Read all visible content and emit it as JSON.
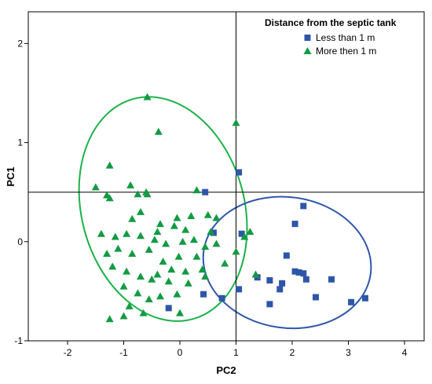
{
  "chart_data": {
    "type": "scatter",
    "xlabel": "PC2",
    "ylabel": "PC1",
    "xlim": [
      -2.7,
      4.35
    ],
    "ylim": [
      -1.0,
      2.32
    ],
    "xticks": [
      -2,
      -1,
      0,
      1,
      2,
      3,
      4
    ],
    "yticks": [
      -1,
      0,
      1,
      2
    ],
    "reference_lines": {
      "x": 1,
      "y": 0.5
    },
    "grid": false,
    "legend": {
      "title": "Distance from the septic tank",
      "placement": "top-right"
    },
    "series": [
      {
        "name": "Less than 1 m",
        "marker": "square",
        "color": "#2e56a8",
        "points": [
          [
            1.05,
            0.7
          ],
          [
            0.45,
            0.5
          ],
          [
            0.6,
            0.09
          ],
          [
            1.1,
            0.08
          ],
          [
            0.42,
            -0.53
          ],
          [
            1.05,
            -0.48
          ],
          [
            0.75,
            -0.57
          ],
          [
            -0.2,
            -0.67
          ],
          [
            2.2,
            0.36
          ],
          [
            2.05,
            0.18
          ],
          [
            1.9,
            -0.14
          ],
          [
            1.38,
            -0.36
          ],
          [
            1.6,
            -0.39
          ],
          [
            1.82,
            -0.42
          ],
          [
            2.05,
            -0.3
          ],
          [
            2.12,
            -0.31
          ],
          [
            2.2,
            -0.32
          ],
          [
            2.25,
            -0.38
          ],
          [
            2.7,
            -0.38
          ],
          [
            1.78,
            -0.48
          ],
          [
            1.6,
            -0.63
          ],
          [
            2.42,
            -0.56
          ],
          [
            3.05,
            -0.61
          ],
          [
            3.3,
            -0.57
          ]
        ]
      },
      {
        "name": "More then 1 m",
        "marker": "triangle",
        "color": "#139a43",
        "ellipse_color": "#1bb24a",
        "points": [
          [
            -0.58,
            1.46
          ],
          [
            -0.38,
            1.11
          ],
          [
            1.0,
            1.2
          ],
          [
            -1.25,
            0.77
          ],
          [
            -1.5,
            0.55
          ],
          [
            -1.3,
            0.47
          ],
          [
            -1.25,
            0.44
          ],
          [
            -0.88,
            0.57
          ],
          [
            -0.6,
            0.5
          ],
          [
            -0.75,
            0.48
          ],
          [
            -0.58,
            0.48
          ],
          [
            0.3,
            0.52
          ],
          [
            0.5,
            0.27
          ],
          [
            0.65,
            0.24
          ],
          [
            0.2,
            0.26
          ],
          [
            -0.05,
            0.24
          ],
          [
            -0.85,
            0.23
          ],
          [
            -0.1,
            0.16
          ],
          [
            -0.35,
            0.18
          ],
          [
            -0.7,
            0.06
          ],
          [
            -0.95,
            0.08
          ],
          [
            -1.15,
            0.05
          ],
          [
            -1.1,
            -0.07
          ],
          [
            -0.85,
            -0.12
          ],
          [
            -0.55,
            -0.08
          ],
          [
            -0.45,
            0.02
          ],
          [
            -0.25,
            -0.02
          ],
          [
            0.05,
            0.0
          ],
          [
            0.25,
            0.02
          ],
          [
            0.45,
            -0.05
          ],
          [
            0.65,
            -0.02
          ],
          [
            0.3,
            -0.15
          ],
          [
            -0.02,
            -0.15
          ],
          [
            -0.3,
            -0.2
          ],
          [
            -0.15,
            -0.28
          ],
          [
            0.1,
            -0.3
          ],
          [
            0.4,
            -0.28
          ],
          [
            0.8,
            -0.22
          ],
          [
            1.0,
            -0.1
          ],
          [
            1.15,
            0.05
          ],
          [
            1.25,
            0.1
          ],
          [
            1.35,
            -0.33
          ],
          [
            -1.4,
            0.08
          ],
          [
            -1.3,
            -0.12
          ],
          [
            -1.2,
            -0.25
          ],
          [
            -0.95,
            -0.3
          ],
          [
            -0.7,
            -0.35
          ],
          [
            -0.5,
            -0.38
          ],
          [
            -0.2,
            -0.4
          ],
          [
            0.15,
            -0.42
          ],
          [
            0.45,
            -0.35
          ],
          [
            -1.0,
            -0.45
          ],
          [
            -0.75,
            -0.52
          ],
          [
            -0.55,
            -0.58
          ],
          [
            -0.35,
            -0.55
          ],
          [
            -0.05,
            -0.53
          ],
          [
            -0.9,
            -0.65
          ],
          [
            -0.65,
            -0.72
          ],
          [
            -1.0,
            -0.75
          ],
          [
            -1.25,
            -0.78
          ],
          [
            0.0,
            -0.72
          ],
          [
            -0.4,
            -0.33
          ],
          [
            0.1,
            0.12
          ],
          [
            -0.7,
            0.3
          ],
          [
            -0.4,
            0.1
          ],
          [
            0.55,
            0.1
          ]
        ]
      }
    ],
    "ellipses": [
      {
        "series": "More then 1 m",
        "cx": -0.3,
        "cy": 0.33,
        "rx": 1.45,
        "ry": 1.15,
        "tilt_deg": -15
      },
      {
        "series": "Less than 1 m",
        "cx": 1.91,
        "cy": -0.21,
        "rx": 1.5,
        "ry": 0.66,
        "tilt_deg": 8
      }
    ]
  }
}
